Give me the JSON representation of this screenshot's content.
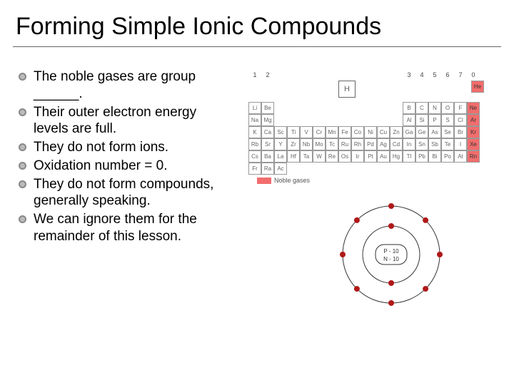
{
  "title": "Forming Simple Ionic Compounds",
  "bullets": [
    "The noble gases are group ______.",
    "Their outer electron energy levels are full.",
    "They do not form ions.",
    "Oxidation number = 0.",
    "They do not form compounds, generally speaking.",
    "We can ignore them for the remainder of this lesson."
  ],
  "periodic_table": {
    "header": [
      "1",
      "2",
      "",
      "",
      "",
      "",
      "",
      "",
      "",
      "",
      "",
      "",
      "3",
      "4",
      "5",
      "6",
      "7",
      "0"
    ],
    "rows": [
      [
        {
          "s": "H",
          "h": true,
          "offset": 3
        },
        {
          "spacer": 14
        },
        {
          "s": "He",
          "noble": true
        }
      ],
      [
        {
          "s": "Li"
        },
        {
          "s": "Be"
        },
        {
          "spacer": 10
        },
        {
          "s": "B"
        },
        {
          "s": "C"
        },
        {
          "s": "N"
        },
        {
          "s": "O"
        },
        {
          "s": "F"
        },
        {
          "s": "Ne",
          "noble": true
        }
      ],
      [
        {
          "s": "Na"
        },
        {
          "s": "Mg"
        },
        {
          "spacer": 10
        },
        {
          "s": "Al"
        },
        {
          "s": "Si"
        },
        {
          "s": "P"
        },
        {
          "s": "S"
        },
        {
          "s": "Cl"
        },
        {
          "s": "Ar",
          "noble": true
        }
      ],
      [
        {
          "s": "K"
        },
        {
          "s": "Ca"
        },
        {
          "s": "Sc"
        },
        {
          "s": "Ti"
        },
        {
          "s": "V"
        },
        {
          "s": "Cr"
        },
        {
          "s": "Mn"
        },
        {
          "s": "Fe"
        },
        {
          "s": "Co"
        },
        {
          "s": "Ni"
        },
        {
          "s": "Cu"
        },
        {
          "s": "Zn"
        },
        {
          "s": "Ga"
        },
        {
          "s": "Ge"
        },
        {
          "s": "As"
        },
        {
          "s": "Se"
        },
        {
          "s": "Br"
        },
        {
          "s": "Kr",
          "noble": true
        }
      ],
      [
        {
          "s": "Rb"
        },
        {
          "s": "Sr"
        },
        {
          "s": "Y"
        },
        {
          "s": "Zr"
        },
        {
          "s": "Nb"
        },
        {
          "s": "Mo"
        },
        {
          "s": "Tc"
        },
        {
          "s": "Ru"
        },
        {
          "s": "Rh"
        },
        {
          "s": "Pd"
        },
        {
          "s": "Ag"
        },
        {
          "s": "Cd"
        },
        {
          "s": "In"
        },
        {
          "s": "Sn"
        },
        {
          "s": "Sb"
        },
        {
          "s": "Te"
        },
        {
          "s": "I"
        },
        {
          "s": "Xe",
          "noble": true
        }
      ],
      [
        {
          "s": "Cs"
        },
        {
          "s": "Ba"
        },
        {
          "s": "La"
        },
        {
          "s": "Hf"
        },
        {
          "s": "Ta"
        },
        {
          "s": "W"
        },
        {
          "s": "Re"
        },
        {
          "s": "Os"
        },
        {
          "s": "Ir"
        },
        {
          "s": "Pt"
        },
        {
          "s": "Au"
        },
        {
          "s": "Hg"
        },
        {
          "s": "Tl"
        },
        {
          "s": "Pb"
        },
        {
          "s": "Bi"
        },
        {
          "s": "Po"
        },
        {
          "s": "At"
        },
        {
          "s": "Rn",
          "noble": true
        }
      ],
      [
        {
          "s": "Fr"
        },
        {
          "s": "Ra"
        },
        {
          "s": "Ac"
        },
        {
          "spacer": 15
        }
      ]
    ],
    "noble_color": "#f26d6d",
    "cell_border": "#999999",
    "legend_label": "Noble gases"
  },
  "atom": {
    "nucleus_lines": [
      "P - 10",
      "N - 10"
    ],
    "shells": [
      {
        "r": 40,
        "electrons": 2
      },
      {
        "r": 68,
        "electrons": 8
      }
    ],
    "electron_color": "#b01818",
    "nucleus_stroke": "#333333",
    "shell_stroke": "#333333"
  }
}
